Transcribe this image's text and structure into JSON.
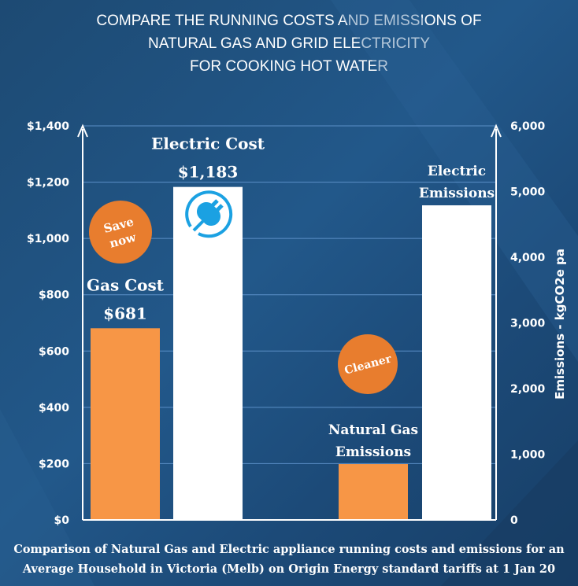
{
  "title_lines": [
    "COMPARE THE RUNNING COSTS AND EMISSIONS OF",
    "NATURAL GAS AND GRID ELECTRICITY",
    "FOR COOKING  HOT WATER"
  ],
  "footnote_lines": [
    "Comparison of Natural Gas and Electric appliance running costs and emissions for an",
    "Average Household in Victoria (Melb) on Origin Energy standard tariffs at 1 Jan 20"
  ],
  "badges": {
    "save": [
      "Save",
      "now"
    ],
    "cleaner": "Cleaner"
  },
  "icons": {
    "electric": "plug-icon"
  },
  "colors": {
    "gas": "#f79646",
    "electric": "#ffffff",
    "badge": "#e87d2e",
    "background": "#1f4e7a"
  },
  "chart_data": {
    "type": "bar",
    "left_axis": {
      "label": "",
      "ylim": [
        0,
        1400
      ],
      "ticks": [
        "$0",
        "$200",
        "$400",
        "$600",
        "$800",
        "$1,000",
        "$1,200",
        "$1,400"
      ]
    },
    "right_axis": {
      "label": "Emissions - kgCO2e  pa",
      "ylim": [
        0,
        6000
      ],
      "ticks": [
        "0",
        "1,000",
        "2,000",
        "3,000",
        "4,000",
        "5,000",
        "6,000"
      ]
    },
    "grid": true,
    "bars": [
      {
        "label_lines": [
          "Gas Cost",
          "$681"
        ],
        "value": 681,
        "axis": "left",
        "fuel": "gas"
      },
      {
        "label_lines": [
          "Electric Cost",
          "$1,183"
        ],
        "value": 1183,
        "axis": "left",
        "fuel": "electric"
      },
      {
        "label_lines": [
          "Natural Gas",
          "Emissions"
        ],
        "value": 850,
        "axis": "right",
        "fuel": "gas"
      },
      {
        "label_lines": [
          "Electric",
          "Emissions"
        ],
        "value": 4790,
        "axis": "right",
        "fuel": "electric"
      }
    ]
  }
}
